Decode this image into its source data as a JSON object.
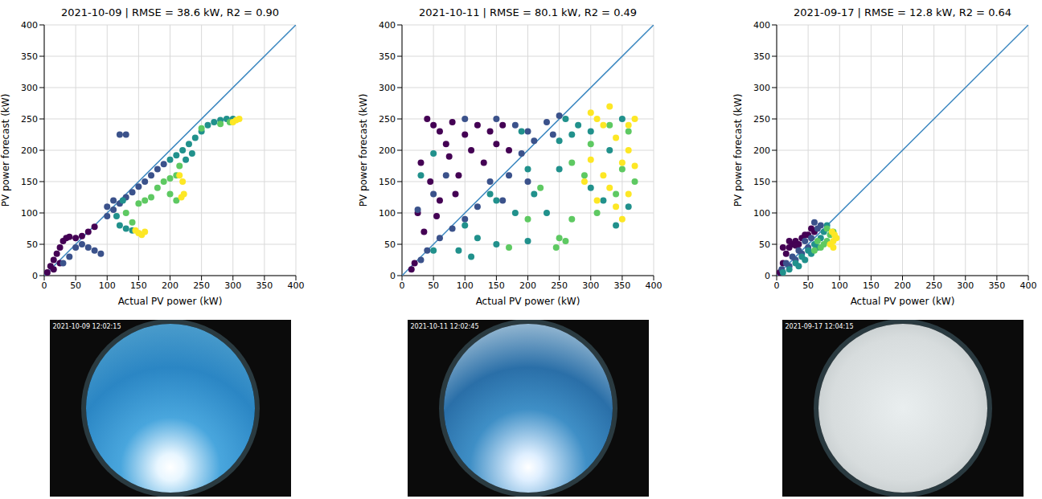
{
  "chart_data": [
    {
      "type": "scatter",
      "title": "2021-10-09 | RMSE = 38.6 kW, R2 = 0.90",
      "x_label": "Actual PV power (kW)",
      "y_label": "PV power forecast (kW)",
      "xlim": [
        0,
        400
      ],
      "ylim": [
        0,
        400
      ],
      "xticks": [
        0,
        50,
        100,
        150,
        200,
        250,
        300,
        350,
        400
      ],
      "yticks": [
        0,
        50,
        100,
        150,
        200,
        250,
        300,
        350,
        400
      ],
      "grid": true,
      "series": [
        {
          "type": "line",
          "color": "#3b87c0",
          "x": [
            0,
            400
          ],
          "values": [
            0,
            400
          ]
        },
        {
          "type": "scatter",
          "marker": "circle",
          "color": "#440154",
          "x": [
            5,
            10,
            15,
            20,
            25,
            30,
            35,
            40,
            50,
            60,
            70,
            80,
            15,
            25
          ],
          "values": [
            5,
            15,
            25,
            35,
            45,
            55,
            60,
            62,
            60,
            63,
            70,
            78,
            10,
            20
          ]
        },
        {
          "type": "scatter",
          "marker": "circle",
          "color": "#3b528b",
          "x": [
            30,
            40,
            50,
            60,
            70,
            80,
            90,
            100,
            110,
            120,
            130,
            140,
            150,
            160,
            170,
            180,
            190,
            120,
            130,
            100,
            110
          ],
          "values": [
            20,
            30,
            45,
            50,
            45,
            40,
            35,
            95,
            105,
            115,
            125,
            133,
            142,
            150,
            160,
            170,
            178,
            225,
            225,
            110,
            120
          ]
        },
        {
          "type": "scatter",
          "marker": "circle",
          "color": "#21918c",
          "x": [
            200,
            210,
            220,
            230,
            240,
            250,
            260,
            270,
            280,
            290,
            300,
            120,
            130,
            140,
            115,
            125,
            225,
            235
          ],
          "values": [
            185,
            192,
            200,
            210,
            220,
            230,
            240,
            245,
            248,
            250,
            250,
            80,
            75,
            72,
            95,
            120,
            185,
            195
          ]
        },
        {
          "type": "scatter",
          "marker": "circle",
          "color": "#5ec962",
          "x": [
            150,
            160,
            170,
            180,
            190,
            200,
            210,
            215,
            140,
            130,
            250,
            280,
            295,
            200,
            210
          ],
          "values": [
            115,
            120,
            125,
            140,
            150,
            155,
            160,
            175,
            85,
            100,
            235,
            242,
            245,
            130,
            120
          ]
        },
        {
          "type": "scatter",
          "marker": "circle",
          "color": "#fde725",
          "x": [
            300,
            305,
            310,
            215,
            220,
            222,
            218,
            150,
            155,
            160,
            145
          ],
          "values": [
            245,
            248,
            250,
            160,
            150,
            130,
            125,
            68,
            65,
            70,
            72
          ]
        }
      ]
    },
    {
      "type": "scatter",
      "title": "2021-10-11 | RMSE = 80.1 kW, R2 = 0.49",
      "x_label": "Actual PV power (kW)",
      "y_label": "PV power forecast (kW)",
      "xlim": [
        0,
        400
      ],
      "ylim": [
        0,
        400
      ],
      "xticks": [
        0,
        50,
        100,
        150,
        200,
        250,
        300,
        350,
        400
      ],
      "yticks": [
        0,
        50,
        100,
        150,
        200,
        250,
        300,
        350,
        400
      ],
      "grid": true,
      "series": [
        {
          "type": "line",
          "color": "#3b87c0",
          "x": [
            0,
            400
          ],
          "values": [
            0,
            400
          ]
        },
        {
          "type": "scatter",
          "marker": "circle",
          "color": "#440154",
          "x": [
            40,
            50,
            60,
            70,
            80,
            100,
            120,
            140,
            30,
            45,
            60,
            75,
            90,
            110,
            130,
            150,
            25,
            35,
            55,
            85,
            20,
            15,
            160,
            170
          ],
          "values": [
            250,
            240,
            230,
            210,
            245,
            225,
            240,
            230,
            180,
            150,
            120,
            190,
            160,
            200,
            180,
            210,
            100,
            70,
            95,
            130,
            20,
            10,
            240,
            200
          ]
        },
        {
          "type": "scatter",
          "marker": "circle",
          "color": "#3b528b",
          "x": [
            100,
            150,
            180,
            200,
            230,
            190,
            210,
            170,
            140,
            120,
            100,
            80,
            60,
            40,
            30,
            50,
            70,
            160,
            200,
            25,
            240,
            250
          ],
          "values": [
            250,
            250,
            240,
            230,
            245,
            195,
            215,
            160,
            150,
            110,
            90,
            75,
            60,
            40,
            25,
            130,
            160,
            120,
            150,
            105,
            225,
            255
          ]
        },
        {
          "type": "scatter",
          "marker": "circle",
          "color": "#21918c",
          "x": [
            50,
            100,
            150,
            200,
            250,
            270,
            300,
            280,
            260,
            180,
            120,
            90,
            110,
            150,
            200,
            230,
            210,
            250,
            300,
            320,
            340,
            360,
            330,
            350,
            140,
            190,
            30,
            50
          ],
          "values": [
            40,
            80,
            120,
            170,
            215,
            225,
            230,
            240,
            250,
            100,
            60,
            40,
            30,
            50,
            55,
            100,
            130,
            170,
            140,
            120,
            80,
            110,
            200,
            250,
            130,
            230,
            160,
            195
          ]
        },
        {
          "type": "scatter",
          "marker": "circle",
          "color": "#5ec962",
          "x": [
            250,
            260,
            245,
            270,
            200,
            170,
            220,
            300,
            310,
            290,
            330,
            350,
            370,
            340,
            270,
            360
          ],
          "values": [
            60,
            55,
            45,
            90,
            90,
            45,
            140,
            210,
            100,
            160,
            240,
            170,
            150,
            130,
            180,
            230
          ]
        },
        {
          "type": "scatter",
          "marker": "circle",
          "color": "#fde725",
          "x": [
            300,
            310,
            320,
            330,
            340,
            350,
            360,
            370,
            320,
            330,
            340,
            350,
            360,
            370,
            300,
            290,
            310,
            360
          ],
          "values": [
            260,
            250,
            240,
            270,
            220,
            180,
            200,
            250,
            160,
            140,
            110,
            90,
            130,
            175,
            185,
            150,
            120,
            240
          ]
        }
      ]
    },
    {
      "type": "scatter",
      "title": "2021-09-17 | RMSE = 12.8 kW, R2 = 0.64",
      "x_label": "Actual PV power (kW)",
      "y_label": "PV power forecast (kW)",
      "xlim": [
        0,
        400
      ],
      "ylim": [
        0,
        400
      ],
      "xticks": [
        0,
        50,
        100,
        150,
        200,
        250,
        300,
        350,
        400
      ],
      "yticks": [
        0,
        50,
        100,
        150,
        200,
        250,
        300,
        350,
        400
      ],
      "grid": true,
      "series": [
        {
          "type": "line",
          "color": "#3b87c0",
          "x": [
            0,
            400
          ],
          "values": [
            0,
            400
          ]
        },
        {
          "type": "scatter",
          "marker": "circle",
          "color": "#440154",
          "x": [
            5,
            10,
            15,
            20,
            25,
            30,
            40,
            50,
            60,
            55,
            45,
            35,
            10,
            20,
            30
          ],
          "values": [
            5,
            20,
            35,
            45,
            50,
            55,
            60,
            65,
            70,
            75,
            65,
            50,
            45,
            55,
            48
          ]
        },
        {
          "type": "scatter",
          "marker": "circle",
          "color": "#3b528b",
          "x": [
            8,
            15,
            25,
            35,
            45,
            55,
            65,
            70,
            60,
            40,
            30,
            20,
            50
          ],
          "values": [
            10,
            20,
            30,
            40,
            55,
            60,
            75,
            80,
            85,
            35,
            25,
            15,
            45
          ]
        },
        {
          "type": "scatter",
          "marker": "circle",
          "color": "#21918c",
          "x": [
            10,
            20,
            30,
            40,
            50,
            60,
            70,
            75,
            80,
            65,
            55,
            45,
            35
          ],
          "values": [
            5,
            10,
            20,
            30,
            40,
            50,
            60,
            70,
            80,
            45,
            35,
            25,
            15
          ]
        },
        {
          "type": "scatter",
          "marker": "circle",
          "color": "#5ec962",
          "x": [
            60,
            70,
            80,
            85,
            75,
            65,
            80,
            90
          ],
          "values": [
            40,
            45,
            55,
            65,
            50,
            55,
            75,
            70
          ]
        },
        {
          "type": "scatter",
          "marker": "circle",
          "color": "#fde725",
          "x": [
            85,
            90,
            95,
            90,
            88,
            92
          ],
          "values": [
            50,
            55,
            60,
            45,
            70,
            65
          ]
        }
      ]
    }
  ],
  "images": [
    {
      "timestamp": "2021-10-09 12:02:15"
    },
    {
      "timestamp": "2021-10-11 12:02:45"
    },
    {
      "timestamp": "2021-09-17 12:04:15"
    }
  ]
}
